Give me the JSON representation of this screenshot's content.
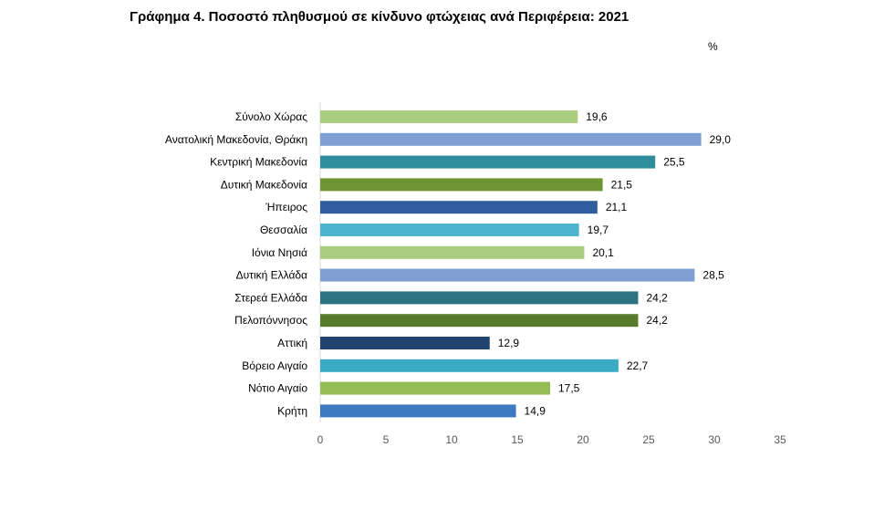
{
  "chart_data": {
    "type": "bar",
    "orientation": "horizontal",
    "title": "Γράφημα 4. Ποσοστό πληθυσμού σε κίνδυνο φτώχειας ανά Περιφέρεια: 2021",
    "unit": "%",
    "categories": [
      "Σύνολο Χώρας",
      "Ανατολική Μακεδονία, Θράκη",
      "Κεντρική Μακεδονία",
      "Δυτική Μακεδονία",
      "Ήπειρος",
      "Θεσσαλία",
      "Ιόνια Νησιά",
      "Δυτική Ελλάδα",
      "Στερεά Ελλάδα",
      "Πελοπόννησος",
      "Αττική",
      "Βόρειο Αιγαίο",
      "Νότιο Αιγαίο",
      "Κρήτη"
    ],
    "values": [
      19.6,
      29.0,
      25.5,
      21.5,
      21.1,
      19.7,
      20.1,
      28.5,
      24.2,
      24.2,
      12.9,
      22.7,
      17.5,
      14.9
    ],
    "data_labels": [
      "19,6",
      "29,0",
      "25,5",
      "21,5",
      "21,1",
      "19,7",
      "20,1",
      "28,5",
      "24,2",
      "24,2",
      "12,9",
      "22,7",
      "17,5",
      "14,9"
    ],
    "bar_colors": [
      "#a9cc7f",
      "#7f9fd3",
      "#2f8d9b",
      "#6f9532",
      "#2f5d9e",
      "#4cb4cf",
      "#a9cc7f",
      "#7f9fd3",
      "#2f7383",
      "#587a2b",
      "#23436f",
      "#3aaac5",
      "#95bd55",
      "#3f79c2"
    ],
    "xlim": [
      0,
      35
    ],
    "xticks": [
      0,
      5,
      10,
      15,
      20,
      25,
      30,
      35
    ],
    "grid": false,
    "legend": "none"
  }
}
